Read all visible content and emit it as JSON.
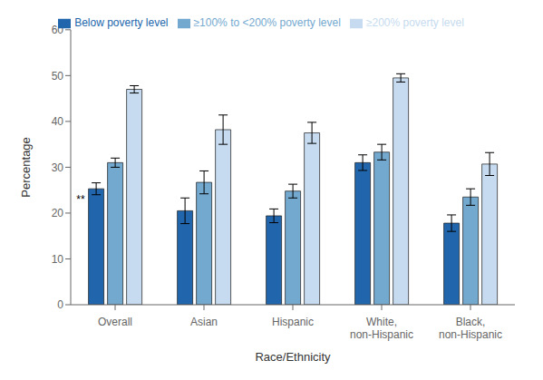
{
  "chart_data": {
    "type": "bar",
    "categories": [
      "Overall",
      "Asian",
      "Hispanic",
      "White,\nnon-Hispanic",
      "Black,\nnon-Hispanic"
    ],
    "series": [
      {
        "name": "Below poverty level",
        "color": "#2166AC",
        "values": [
          25.3,
          20.5,
          19.4,
          31.0,
          17.8
        ],
        "errors": [
          1.3,
          2.8,
          1.5,
          1.7,
          1.8
        ]
      },
      {
        "name": "≥100% to <200% poverty level",
        "color": "#74A9CF",
        "values": [
          31.0,
          26.7,
          24.8,
          33.3,
          23.5
        ],
        "errors": [
          1.0,
          2.5,
          1.5,
          1.7,
          1.8
        ]
      },
      {
        "name": "≥200% poverty level",
        "color": "#C6DBEF",
        "values": [
          47.0,
          38.2,
          37.5,
          49.5,
          30.7
        ],
        "errors": [
          0.8,
          3.2,
          2.3,
          0.9,
          2.5
        ]
      }
    ],
    "xlabel": "Race/Ethnicity",
    "ylabel": "Percentage",
    "ylim": [
      0,
      60
    ],
    "yticks": [
      0,
      10,
      20,
      30,
      40,
      50,
      60
    ],
    "annotation": "**",
    "grid": false,
    "legend": "top"
  }
}
